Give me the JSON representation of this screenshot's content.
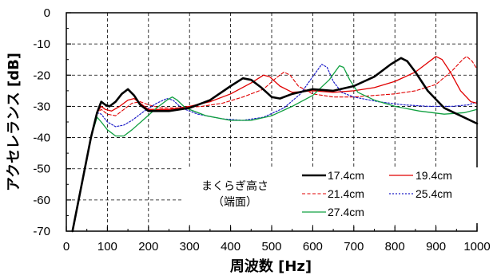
{
  "chart_data": {
    "type": "line",
    "xlabel": "周波数 [Hz]",
    "ylabel": "アクセレランス [dB]",
    "xlim": [
      0,
      1000
    ],
    "ylim": [
      -70,
      0
    ],
    "xticks": [
      "0",
      "100",
      "200",
      "300",
      "400",
      "500",
      "600",
      "700",
      "800",
      "900",
      "1000"
    ],
    "yticks": [
      "0",
      "-10",
      "-20",
      "-30",
      "-40",
      "-50",
      "-60",
      "-70"
    ],
    "grid": "dashed",
    "legend": {
      "title_line1": "まくらぎ高さ",
      "title_line2": "（端面）",
      "placement": "bottom-center"
    },
    "series": [
      {
        "name": "17.4cm",
        "color": "#000000",
        "dash": "solid",
        "width": 2.6,
        "points": [
          [
            15,
            -70
          ],
          [
            30,
            -60
          ],
          [
            45,
            -50
          ],
          [
            60,
            -40
          ],
          [
            75,
            -32
          ],
          [
            85,
            -28.5
          ],
          [
            95,
            -29.5
          ],
          [
            105,
            -30
          ],
          [
            120,
            -28.5
          ],
          [
            135,
            -26
          ],
          [
            150,
            -24.5
          ],
          [
            165,
            -26.5
          ],
          [
            180,
            -29.5
          ],
          [
            200,
            -31.5
          ],
          [
            250,
            -31.5
          ],
          [
            300,
            -30.5
          ],
          [
            350,
            -28
          ],
          [
            400,
            -23.5
          ],
          [
            430,
            -21
          ],
          [
            450,
            -21.5
          ],
          [
            475,
            -24
          ],
          [
            500,
            -27
          ],
          [
            520,
            -27.5
          ],
          [
            550,
            -26
          ],
          [
            600,
            -24.5
          ],
          [
            650,
            -25
          ],
          [
            700,
            -23.5
          ],
          [
            750,
            -20.5
          ],
          [
            790,
            -16.5
          ],
          [
            815,
            -14.5
          ],
          [
            830,
            -15.5
          ],
          [
            850,
            -19
          ],
          [
            880,
            -25
          ],
          [
            920,
            -30.5
          ],
          [
            960,
            -33
          ],
          [
            1000,
            -35.5
          ]
        ]
      },
      {
        "name": "19.4cm",
        "color": "#e00000",
        "dash": "solid",
        "width": 1.3,
        "points": [
          [
            15,
            -70
          ],
          [
            30,
            -60
          ],
          [
            45,
            -50
          ],
          [
            60,
            -40
          ],
          [
            75,
            -32
          ],
          [
            85,
            -30
          ],
          [
            95,
            -31
          ],
          [
            110,
            -31.5
          ],
          [
            130,
            -30
          ],
          [
            150,
            -28
          ],
          [
            165,
            -27.5
          ],
          [
            180,
            -29
          ],
          [
            200,
            -31
          ],
          [
            250,
            -31
          ],
          [
            300,
            -30
          ],
          [
            350,
            -28.5
          ],
          [
            400,
            -26
          ],
          [
            450,
            -22.5
          ],
          [
            480,
            -20
          ],
          [
            495,
            -20.5
          ],
          [
            520,
            -23.5
          ],
          [
            550,
            -25.5
          ],
          [
            600,
            -25
          ],
          [
            650,
            -25.5
          ],
          [
            700,
            -25
          ],
          [
            750,
            -24
          ],
          [
            800,
            -22
          ],
          [
            850,
            -19
          ],
          [
            880,
            -16
          ],
          [
            900,
            -14
          ],
          [
            915,
            -15
          ],
          [
            935,
            -19
          ],
          [
            960,
            -25
          ],
          [
            985,
            -28.5
          ],
          [
            1000,
            -29
          ]
        ]
      },
      {
        "name": "21.4cm",
        "color": "#e00000",
        "dash": "dash",
        "width": 1.1,
        "points": [
          [
            15,
            -70
          ],
          [
            30,
            -60
          ],
          [
            45,
            -50
          ],
          [
            60,
            -40
          ],
          [
            75,
            -32
          ],
          [
            85,
            -31
          ],
          [
            100,
            -32.5
          ],
          [
            120,
            -33
          ],
          [
            140,
            -31
          ],
          [
            160,
            -29
          ],
          [
            180,
            -28.5
          ],
          [
            200,
            -29.5
          ],
          [
            230,
            -30.5
          ],
          [
            280,
            -30.5
          ],
          [
            330,
            -30
          ],
          [
            380,
            -29
          ],
          [
            430,
            -27
          ],
          [
            480,
            -24.5
          ],
          [
            510,
            -21
          ],
          [
            530,
            -19
          ],
          [
            545,
            -20
          ],
          [
            565,
            -23.5
          ],
          [
            600,
            -26
          ],
          [
            650,
            -27
          ],
          [
            700,
            -27
          ],
          [
            750,
            -26.5
          ],
          [
            800,
            -26
          ],
          [
            850,
            -25
          ],
          [
            900,
            -23
          ],
          [
            940,
            -18.5
          ],
          [
            965,
            -15
          ],
          [
            975,
            -14
          ],
          [
            988,
            -15.5
          ],
          [
            1000,
            -18
          ]
        ]
      },
      {
        "name": "25.4cm",
        "color": "#1e1ec8",
        "dash": "dot",
        "width": 1.2,
        "points": [
          [
            15,
            -70
          ],
          [
            30,
            -60
          ],
          [
            45,
            -50
          ],
          [
            60,
            -40
          ],
          [
            75,
            -32
          ],
          [
            85,
            -32.5
          ],
          [
            100,
            -35
          ],
          [
            120,
            -36.5
          ],
          [
            140,
            -36
          ],
          [
            160,
            -34.5
          ],
          [
            190,
            -31.5
          ],
          [
            220,
            -29
          ],
          [
            245,
            -27.5
          ],
          [
            260,
            -28
          ],
          [
            280,
            -30.5
          ],
          [
            320,
            -32.5
          ],
          [
            380,
            -34
          ],
          [
            430,
            -34.5
          ],
          [
            480,
            -33.5
          ],
          [
            530,
            -30.5
          ],
          [
            570,
            -26
          ],
          [
            600,
            -20.5
          ],
          [
            622,
            -16.5
          ],
          [
            635,
            -17.5
          ],
          [
            650,
            -22
          ],
          [
            670,
            -25.5
          ],
          [
            700,
            -27
          ],
          [
            760,
            -28.5
          ],
          [
            820,
            -29.5
          ],
          [
            880,
            -30
          ],
          [
            940,
            -30
          ],
          [
            980,
            -29.5
          ],
          [
            1000,
            -28.5
          ]
        ]
      },
      {
        "name": "27.4cm",
        "color": "#10a040",
        "dash": "solid",
        "width": 1.3,
        "points": [
          [
            15,
            -70
          ],
          [
            30,
            -60
          ],
          [
            45,
            -50
          ],
          [
            60,
            -40
          ],
          [
            75,
            -33.5
          ],
          [
            85,
            -35
          ],
          [
            100,
            -37.5
          ],
          [
            120,
            -39.5
          ],
          [
            140,
            -39.5
          ],
          [
            160,
            -37.5
          ],
          [
            190,
            -34
          ],
          [
            220,
            -30.5
          ],
          [
            245,
            -28
          ],
          [
            258,
            -27
          ],
          [
            270,
            -28
          ],
          [
            290,
            -30.5
          ],
          [
            340,
            -33
          ],
          [
            400,
            -34.5
          ],
          [
            450,
            -34.5
          ],
          [
            500,
            -33
          ],
          [
            550,
            -30
          ],
          [
            600,
            -26.5
          ],
          [
            640,
            -21.5
          ],
          [
            665,
            -17
          ],
          [
            675,
            -17.5
          ],
          [
            690,
            -21.5
          ],
          [
            710,
            -25.5
          ],
          [
            750,
            -28
          ],
          [
            800,
            -30
          ],
          [
            860,
            -31.5
          ],
          [
            920,
            -32.5
          ],
          [
            970,
            -32
          ],
          [
            1000,
            -31
          ]
        ]
      }
    ]
  }
}
